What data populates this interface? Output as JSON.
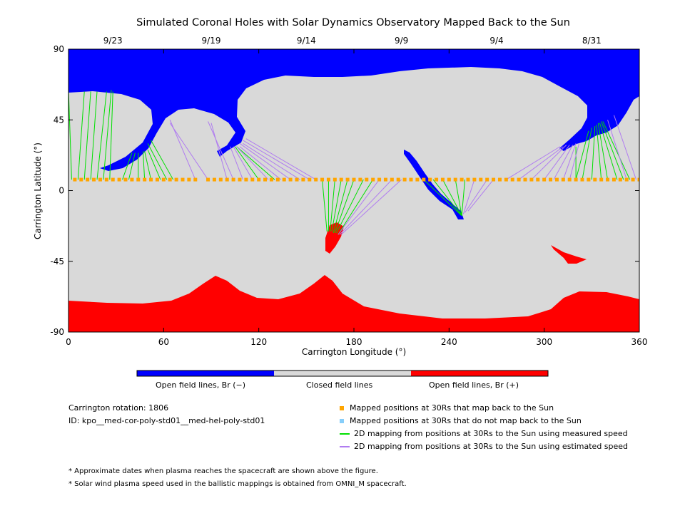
{
  "chart_data": {
    "type": "map",
    "title": "Simulated Coronal Holes with Solar Dynamics Observatory Mapped Back to the Sun",
    "xlabel": "Carrington Longitude (°)",
    "ylabel": "Carrington Latitude (°)",
    "xlim": [
      0,
      360
    ],
    "ylim": [
      -90,
      90
    ],
    "xticks": [
      0,
      60,
      120,
      180,
      240,
      300,
      360
    ],
    "yticks": [
      90,
      45,
      0,
      -45,
      -90
    ],
    "date_ticks": [
      {
        "lon": 28,
        "label": "9/23"
      },
      {
        "lon": 90,
        "label": "9/19"
      },
      {
        "lon": 150,
        "label": "9/14"
      },
      {
        "lon": 210,
        "label": "9/9"
      },
      {
        "lon": 270,
        "label": "9/4"
      },
      {
        "lon": 330,
        "label": "8/31"
      }
    ],
    "colorbar": [
      {
        "label": "Open field lines, Br (−)",
        "color": "#0000ff"
      },
      {
        "label": "Closed field lines",
        "color": "#d9d9d9"
      },
      {
        "label": "Open field lines, Br (+)",
        "color": "#ff0000"
      }
    ],
    "info": {
      "rotation": "Carrington rotation: 1806",
      "id": "ID: kpo__med-cor-poly-std01__med-hel-poly-std01"
    },
    "legend": [
      {
        "label": "Mapped positions at 30Rs that map back to the Sun",
        "color": "#ffa500",
        "kind": "square"
      },
      {
        "label": "Mapped positions at 30Rs that do not map back to the Sun",
        "color": "#87cefa",
        "kind": "square"
      },
      {
        "label": "2D mapping from positions at 30Rs to the Sun using measured speed",
        "color": "#00e000",
        "kind": "line"
      },
      {
        "label": "2D mapping from positions at 30Rs to the Sun using estimated speed",
        "color": "#b07cf0",
        "kind": "line"
      }
    ],
    "notes": [
      "* Approximate dates when plasma reaches the spacecraft are shown above the figure.",
      "* Solar wind plasma speed used in the ballistic mappings is obtained from OMNI_M spacecraft."
    ],
    "sc_latitude": 7,
    "sc_points_lon": [
      4,
      8,
      12,
      16,
      20,
      24,
      28,
      32,
      36,
      40,
      44,
      48,
      52,
      56,
      60,
      64,
      68,
      72,
      76,
      80,
      88,
      92,
      96,
      100,
      104,
      108,
      112,
      116,
      120,
      124,
      128,
      132,
      136,
      140,
      144,
      148,
      152,
      156,
      160,
      164,
      168,
      172,
      176,
      180,
      184,
      188,
      192,
      196,
      200,
      204,
      208,
      212,
      216,
      220,
      224,
      228,
      232,
      236,
      240,
      244,
      248,
      252,
      256,
      260,
      264,
      268,
      272,
      276,
      280,
      284,
      288,
      292,
      296,
      300,
      304,
      308,
      312,
      316,
      320,
      324,
      328,
      332,
      336,
      340,
      344,
      348,
      352,
      356,
      360
    ],
    "mappings": {
      "measured": [
        {
          "from": 2,
          "to": [
            0,
            64
          ]
        },
        {
          "from": 6,
          "to": [
            10,
            63
          ]
        },
        {
          "from": 10,
          "to": [
            14,
            63
          ]
        },
        {
          "from": 14,
          "to": [
            18,
            63
          ]
        },
        {
          "from": 18,
          "to": [
            24,
            63
          ]
        },
        {
          "from": 22,
          "to": [
            27,
            64
          ]
        },
        {
          "from": 26,
          "to": [
            28,
            63
          ]
        },
        {
          "from": 34,
          "to": [
            40,
            24
          ]
        },
        {
          "from": 38,
          "to": [
            42,
            24
          ]
        },
        {
          "from": 44,
          "to": [
            44,
            24
          ]
        },
        {
          "from": 48,
          "to": [
            47,
            25
          ]
        },
        {
          "from": 52,
          "to": [
            48,
            25
          ]
        },
        {
          "from": 58,
          "to": [
            50,
            26
          ]
        },
        {
          "from": 62,
          "to": [
            50,
            30
          ]
        },
        {
          "from": 66,
          "to": [
            52,
            32
          ]
        },
        {
          "from": 120,
          "to": [
            105,
            28
          ]
        },
        {
          "from": 130,
          "to": [
            106,
            28
          ]
        },
        {
          "from": 160,
          "to": [
            163,
            -26
          ]
        },
        {
          "from": 164,
          "to": [
            164,
            -26
          ]
        },
        {
          "from": 168,
          "to": [
            165,
            -26
          ]
        },
        {
          "from": 172,
          "to": [
            166,
            -26
          ]
        },
        {
          "from": 176,
          "to": [
            167,
            -27
          ]
        },
        {
          "from": 180,
          "to": [
            168,
            -27
          ]
        },
        {
          "from": 186,
          "to": [
            169,
            -27
          ]
        },
        {
          "from": 192,
          "to": [
            170,
            -28
          ]
        },
        {
          "from": 224,
          "to": [
            248,
            -16
          ]
        },
        {
          "from": 230,
          "to": [
            248,
            -16
          ]
        },
        {
          "from": 236,
          "to": [
            248,
            -16
          ]
        },
        {
          "from": 244,
          "to": [
            248,
            -16
          ]
        },
        {
          "from": 250,
          "to": [
            248,
            -16
          ]
        },
        {
          "from": 320,
          "to": [
            328,
            38
          ]
        },
        {
          "from": 324,
          "to": [
            330,
            40
          ]
        },
        {
          "from": 330,
          "to": [
            332,
            41
          ]
        },
        {
          "from": 336,
          "to": [
            333,
            42
          ]
        },
        {
          "from": 340,
          "to": [
            334,
            43
          ]
        },
        {
          "from": 346,
          "to": [
            335,
            43
          ]
        },
        {
          "from": 350,
          "to": [
            336,
            44
          ]
        },
        {
          "from": 354,
          "to": [
            337,
            44
          ]
        },
        {
          "from": 320,
          "to": [
            320,
            28
          ]
        }
      ],
      "estimated": [
        {
          "from": 80,
          "to": [
            64,
            45
          ]
        },
        {
          "from": 88,
          "to": [
            64,
            43
          ]
        },
        {
          "from": 100,
          "to": [
            90,
            43
          ]
        },
        {
          "from": 104,
          "to": [
            88,
            44
          ]
        },
        {
          "from": 110,
          "to": [
            102,
            28
          ]
        },
        {
          "from": 116,
          "to": [
            104,
            28
          ]
        },
        {
          "from": 126,
          "to": [
            106,
            28
          ]
        },
        {
          "from": 134,
          "to": [
            108,
            28
          ]
        },
        {
          "from": 140,
          "to": [
            108,
            30
          ]
        },
        {
          "from": 146,
          "to": [
            110,
            30
          ]
        },
        {
          "from": 152,
          "to": [
            110,
            32
          ]
        },
        {
          "from": 156,
          "to": [
            112,
            33
          ]
        },
        {
          "from": 196,
          "to": [
            170,
            -28
          ]
        },
        {
          "from": 204,
          "to": [
            171,
            -28
          ]
        },
        {
          "from": 210,
          "to": [
            172,
            -28
          ]
        },
        {
          "from": 256,
          "to": [
            249,
            -15
          ]
        },
        {
          "from": 264,
          "to": [
            250,
            -14
          ]
        },
        {
          "from": 268,
          "to": [
            252,
            -13
          ]
        },
        {
          "from": 276,
          "to": [
            310,
            28
          ]
        },
        {
          "from": 284,
          "to": [
            312,
            28
          ]
        },
        {
          "from": 292,
          "to": [
            314,
            29
          ]
        },
        {
          "from": 300,
          "to": [
            316,
            29
          ]
        },
        {
          "from": 306,
          "to": [
            318,
            29
          ]
        },
        {
          "from": 312,
          "to": [
            320,
            30
          ]
        },
        {
          "from": 316,
          "to": [
            322,
            30
          ]
        },
        {
          "from": 352,
          "to": [
            340,
            45
          ]
        },
        {
          "from": 358,
          "to": [
            344,
            48
          ]
        }
      ]
    }
  }
}
